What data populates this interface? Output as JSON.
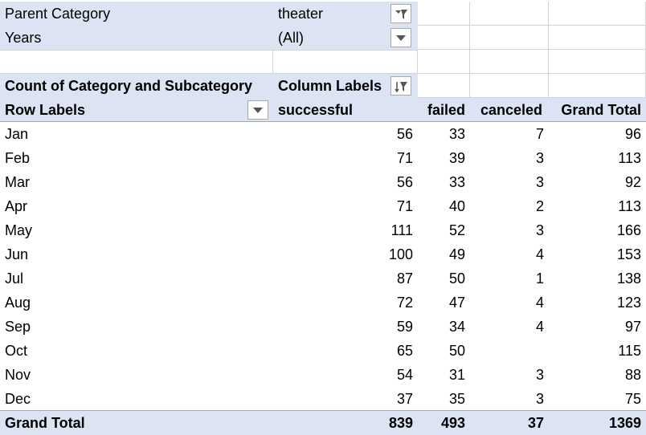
{
  "filters": [
    {
      "label": "Parent Category",
      "value": "theater",
      "icon": "filter-applied-icon"
    },
    {
      "label": "Years",
      "value": "(All)",
      "icon": "chevron-down-icon"
    }
  ],
  "pivot": {
    "values_label": "Count of Category and Subcategory",
    "column_labels": "Column Labels",
    "row_labels": "Row Labels",
    "columns": [
      "successful",
      "failed",
      "canceled",
      "Grand Total"
    ],
    "rows": [
      {
        "label": "Jan",
        "values": [
          "56",
          "33",
          "7",
          "96"
        ]
      },
      {
        "label": "Feb",
        "values": [
          "71",
          "39",
          "3",
          "113"
        ]
      },
      {
        "label": "Mar",
        "values": [
          "56",
          "33",
          "3",
          "92"
        ]
      },
      {
        "label": "Apr",
        "values": [
          "71",
          "40",
          "2",
          "113"
        ]
      },
      {
        "label": "May",
        "values": [
          "111",
          "52",
          "3",
          "166"
        ]
      },
      {
        "label": "Jun",
        "values": [
          "100",
          "49",
          "4",
          "153"
        ]
      },
      {
        "label": "Jul",
        "values": [
          "87",
          "50",
          "1",
          "138"
        ]
      },
      {
        "label": "Aug",
        "values": [
          "72",
          "47",
          "4",
          "123"
        ]
      },
      {
        "label": "Sep",
        "values": [
          "59",
          "34",
          "4",
          "97"
        ]
      },
      {
        "label": "Oct",
        "values": [
          "65",
          "50",
          "",
          "115"
        ]
      },
      {
        "label": "Nov",
        "values": [
          "54",
          "31",
          "3",
          "88"
        ]
      },
      {
        "label": "Dec",
        "values": [
          "37",
          "35",
          "3",
          "75"
        ]
      }
    ],
    "grand_total": {
      "label": "Grand Total",
      "values": [
        "839",
        "493",
        "37",
        "1369"
      ]
    }
  }
}
